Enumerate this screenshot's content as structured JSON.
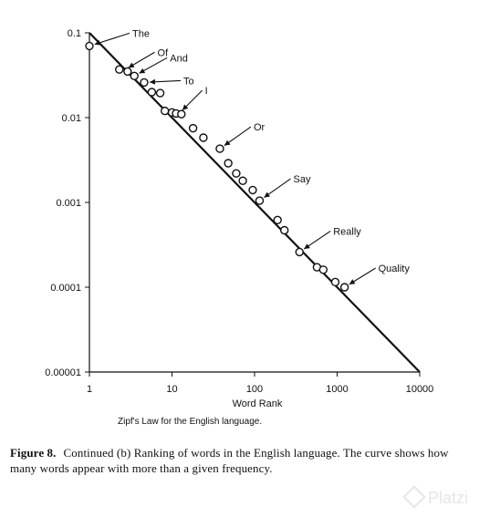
{
  "chart_data": {
    "type": "scatter",
    "title": "",
    "xlabel": "Word Rank",
    "ylabel": "",
    "xscale": "log",
    "yscale": "log",
    "xlim": [
      1,
      10000
    ],
    "ylim": [
      1e-05,
      0.1
    ],
    "grid": false,
    "x_ticks": [
      1,
      10,
      100,
      1000,
      10000
    ],
    "x_tick_labels": [
      "1",
      "10",
      "100",
      "1000",
      "10000"
    ],
    "y_ticks": [
      0.1,
      0.01,
      0.001,
      0.0001,
      1e-05
    ],
    "y_tick_labels": [
      "0.1",
      "0.01",
      "0.001",
      "0.0001",
      "0.00001"
    ],
    "reference_line": {
      "x": [
        1,
        10000
      ],
      "y": [
        0.1,
        1e-05
      ]
    },
    "points": [
      {
        "x": 1,
        "y": 0.07
      },
      {
        "x": 2.3,
        "y": 0.037
      },
      {
        "x": 2.9,
        "y": 0.035
      },
      {
        "x": 3.5,
        "y": 0.031
      },
      {
        "x": 4.6,
        "y": 0.026
      },
      {
        "x": 5.7,
        "y": 0.02
      },
      {
        "x": 7.2,
        "y": 0.0195
      },
      {
        "x": 8.2,
        "y": 0.012
      },
      {
        "x": 10,
        "y": 0.0115
      },
      {
        "x": 11.2,
        "y": 0.0112
      },
      {
        "x": 13,
        "y": 0.011
      },
      {
        "x": 18,
        "y": 0.0075
      },
      {
        "x": 24,
        "y": 0.0058
      },
      {
        "x": 38,
        "y": 0.0043
      },
      {
        "x": 48,
        "y": 0.0029
      },
      {
        "x": 60,
        "y": 0.0022
      },
      {
        "x": 72,
        "y": 0.0018
      },
      {
        "x": 95,
        "y": 0.0014
      },
      {
        "x": 115,
        "y": 0.00105
      },
      {
        "x": 190,
        "y": 0.00062
      },
      {
        "x": 230,
        "y": 0.00047
      },
      {
        "x": 350,
        "y": 0.00026
      },
      {
        "x": 570,
        "y": 0.000172
      },
      {
        "x": 680,
        "y": 0.000161
      },
      {
        "x": 950,
        "y": 0.000115
      },
      {
        "x": 1230,
        "y": 0.0001
      }
    ],
    "annotations": [
      {
        "text": "The",
        "x": 1.0,
        "y": 0.07
      },
      {
        "text": "Of",
        "x": 2.6,
        "y": 0.036
      },
      {
        "text": "And",
        "x": 3.5,
        "y": 0.031
      },
      {
        "text": "To",
        "x": 4.6,
        "y": 0.026
      },
      {
        "text": "I",
        "x": 12.0,
        "y": 0.011
      },
      {
        "text": "Or",
        "x": 38,
        "y": 0.0043
      },
      {
        "text": "Say",
        "x": 115,
        "y": 0.00105
      },
      {
        "text": "Really",
        "x": 350,
        "y": 0.00026
      },
      {
        "text": "Quality",
        "x": 1230,
        "y": 0.0001
      }
    ]
  },
  "caption_sub": "Zipf's Law for the English language.",
  "figure_caption": {
    "label": "Figure 8.",
    "text": "Continued (b) Ranking of words in the English language. The curve shows how many words appear with more than a given frequency."
  },
  "watermark": {
    "text": "Platzi"
  }
}
